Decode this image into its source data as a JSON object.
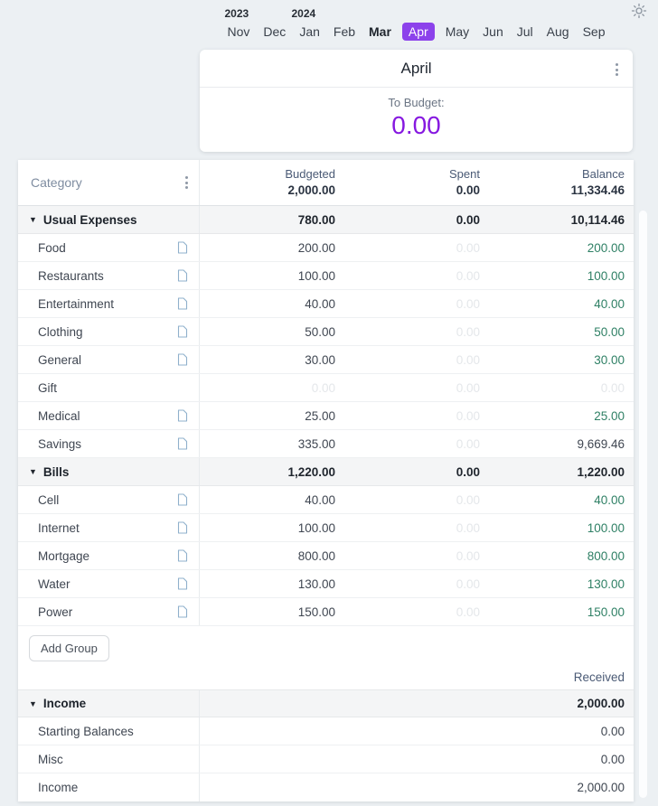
{
  "colors": {
    "bg": "#ecf0f3",
    "accent-purple": "#8618e0",
    "month-selected-bg": "#8c42eb",
    "positive": "#2f8065",
    "faint": "#e4e7ea"
  },
  "icons": {
    "theme": "sun-icon",
    "card_menu": "kebab-vertical-icon",
    "header_menu": "kebab-vertical-icon",
    "group_collapse": "triangle-down-icon",
    "category_note": "note-file-icon"
  },
  "month_picker": {
    "years": [
      {
        "label": "2023",
        "above_month_index": 0
      },
      {
        "label": "2024",
        "above_month_index": 2
      }
    ],
    "months": [
      {
        "label": "Nov"
      },
      {
        "label": "Dec"
      },
      {
        "label": "Jan"
      },
      {
        "label": "Feb"
      },
      {
        "label": "Mar",
        "emphasis": true
      },
      {
        "label": "Apr",
        "selected": true
      },
      {
        "label": "May"
      },
      {
        "label": "Jun"
      },
      {
        "label": "Jul"
      },
      {
        "label": "Aug"
      },
      {
        "label": "Sep"
      }
    ]
  },
  "summary_card": {
    "title": "April",
    "to_budget_label": "To Budget:",
    "to_budget_value": "0.00"
  },
  "table": {
    "header": {
      "category_label": "Category",
      "columns": [
        {
          "label": "Budgeted",
          "total": "2,000.00"
        },
        {
          "label": "Spent",
          "total": "0.00"
        },
        {
          "label": "Balance",
          "total": "11,334.46"
        }
      ]
    },
    "expense_groups": [
      {
        "name": "Usual Expenses",
        "budgeted": "780.00",
        "spent": "0.00",
        "balance": "10,114.46",
        "rows": [
          {
            "name": "Food",
            "has_note": true,
            "budgeted": "200.00",
            "budgeted_style": "normal",
            "spent": "0.00",
            "balance": "200.00",
            "balance_style": "positive"
          },
          {
            "name": "Restaurants",
            "has_note": true,
            "budgeted": "100.00",
            "budgeted_style": "normal",
            "spent": "0.00",
            "balance": "100.00",
            "balance_style": "positive"
          },
          {
            "name": "Entertainment",
            "has_note": true,
            "budgeted": "40.00",
            "budgeted_style": "normal",
            "spent": "0.00",
            "balance": "40.00",
            "balance_style": "positive"
          },
          {
            "name": "Clothing",
            "has_note": true,
            "budgeted": "50.00",
            "budgeted_style": "normal",
            "spent": "0.00",
            "balance": "50.00",
            "balance_style": "positive"
          },
          {
            "name": "General",
            "has_note": true,
            "budgeted": "30.00",
            "budgeted_style": "normal",
            "spent": "0.00",
            "balance": "30.00",
            "balance_style": "positive"
          },
          {
            "name": "Gift",
            "has_note": false,
            "budgeted": "0.00",
            "budgeted_style": "faint",
            "spent": "0.00",
            "balance": "0.00",
            "balance_style": "faint"
          },
          {
            "name": "Medical",
            "has_note": true,
            "budgeted": "25.00",
            "budgeted_style": "normal",
            "spent": "0.00",
            "balance": "25.00",
            "balance_style": "positive"
          },
          {
            "name": "Savings",
            "has_note": true,
            "budgeted": "335.00",
            "budgeted_style": "normal",
            "spent": "0.00",
            "balance": "9,669.46",
            "balance_style": "neutral"
          }
        ]
      },
      {
        "name": "Bills",
        "budgeted": "1,220.00",
        "spent": "0.00",
        "balance": "1,220.00",
        "rows": [
          {
            "name": "Cell",
            "has_note": true,
            "budgeted": "40.00",
            "budgeted_style": "normal",
            "spent": "0.00",
            "balance": "40.00",
            "balance_style": "positive"
          },
          {
            "name": "Internet",
            "has_note": true,
            "budgeted": "100.00",
            "budgeted_style": "normal",
            "spent": "0.00",
            "balance": "100.00",
            "balance_style": "positive"
          },
          {
            "name": "Mortgage",
            "has_note": true,
            "budgeted": "800.00",
            "budgeted_style": "normal",
            "spent": "0.00",
            "balance": "800.00",
            "balance_style": "positive"
          },
          {
            "name": "Water",
            "has_note": true,
            "budgeted": "130.00",
            "budgeted_style": "normal",
            "spent": "0.00",
            "balance": "130.00",
            "balance_style": "positive"
          },
          {
            "name": "Power",
            "has_note": true,
            "budgeted": "150.00",
            "budgeted_style": "normal",
            "spent": "0.00",
            "balance": "150.00",
            "balance_style": "positive"
          }
        ]
      }
    ],
    "add_group_label": "Add Group",
    "received_label": "Received",
    "income_group": {
      "name": "Income",
      "received": "2,000.00",
      "rows": [
        {
          "name": "Starting Balances",
          "value": "0.00"
        },
        {
          "name": "Misc",
          "value": "0.00"
        },
        {
          "name": "Income",
          "value": "2,000.00"
        }
      ]
    }
  }
}
